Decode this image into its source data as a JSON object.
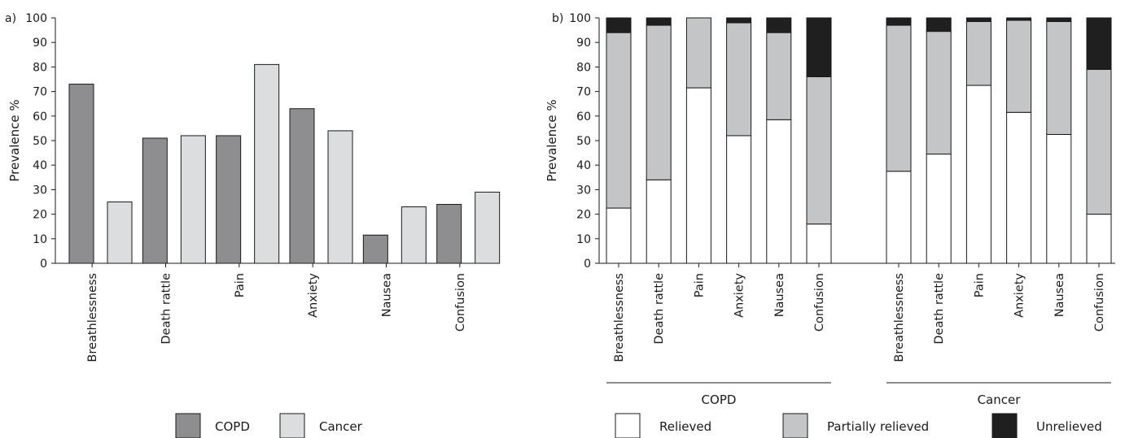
{
  "chart_data": [
    {
      "panel_label": "a)",
      "type": "bar",
      "ylabel": "Prevalence %",
      "ylim": [
        0,
        100
      ],
      "yticks": [
        "0",
        "10",
        "20",
        "30",
        "40",
        "50",
        "60",
        "70",
        "80",
        "90",
        "100"
      ],
      "categories": [
        "Breathlessness",
        "Death rattle",
        "Pain",
        "Anxiety",
        "Nausea",
        "Confusion"
      ],
      "series": [
        {
          "name": "COPD",
          "color": "#8e8e90",
          "values": [
            73,
            51,
            52,
            63,
            11.5,
            24
          ]
        },
        {
          "name": "Cancer",
          "color": "#dcdddf",
          "values": [
            25,
            52,
            81,
            54,
            23,
            29
          ]
        }
      ],
      "grid": false,
      "legend_position": "bottom"
    },
    {
      "panel_label": "b)",
      "type": "bar",
      "stacked": true,
      "ylabel": "Prevalence %",
      "ylim": [
        0,
        100
      ],
      "yticks": [
        "0",
        "10",
        "20",
        "30",
        "40",
        "50",
        "60",
        "70",
        "80",
        "90",
        "100"
      ],
      "groups": [
        {
          "label": "COPD",
          "categories": [
            "Breathlessness",
            "Death rattle",
            "Pain",
            "Anxiety",
            "Nausea",
            "Confusion"
          ],
          "relieved": [
            22.5,
            34,
            71.5,
            52,
            58.5,
            16
          ],
          "partially_relieved": [
            71.5,
            63,
            28.5,
            46,
            35.5,
            60
          ],
          "unrelieved": [
            6,
            3,
            0,
            2,
            6,
            24
          ]
        },
        {
          "label": "Cancer",
          "categories": [
            "Breathlessness",
            "Death rattle",
            "Pain",
            "Anxiety",
            "Nausea",
            "Confusion"
          ],
          "relieved": [
            37.5,
            44.5,
            72.5,
            61.5,
            52.5,
            20
          ],
          "partially_relieved": [
            59.5,
            50,
            26,
            37.5,
            46,
            59
          ],
          "unrelieved": [
            3,
            5.5,
            1.5,
            1,
            1.5,
            21
          ]
        }
      ],
      "series": [
        {
          "name": "Relieved",
          "color": "#ffffff"
        },
        {
          "name": "Partially relieved",
          "color": "#c4c5c7"
        },
        {
          "name": "Unrelieved",
          "color": "#1f1f1f"
        }
      ],
      "grid": false,
      "legend_position": "bottom"
    }
  ]
}
